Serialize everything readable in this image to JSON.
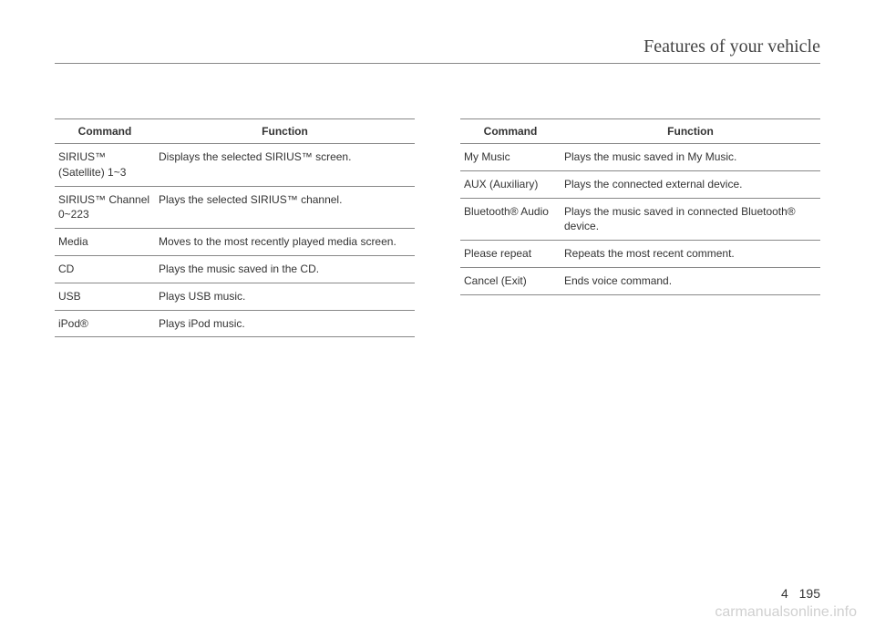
{
  "header": {
    "section_title": "Features of your vehicle"
  },
  "left_table": {
    "headers": {
      "command": "Command",
      "function": "Function"
    },
    "rows": [
      {
        "command": "SIRIUS™ (Satellite) 1~3",
        "function": "Displays the selected SIRIUS™ screen."
      },
      {
        "command": "SIRIUS™ Channel 0~223",
        "function": "Plays the selected SIRIUS™ channel."
      },
      {
        "command": "Media",
        "function": "Moves to the most recently played media screen."
      },
      {
        "command": "CD",
        "function": "Plays the music saved in the CD."
      },
      {
        "command": "USB",
        "function": "Plays USB music."
      },
      {
        "command": "iPod®",
        "function": "Plays iPod music."
      }
    ]
  },
  "right_table": {
    "headers": {
      "command": "Command",
      "function": "Function"
    },
    "rows": [
      {
        "command": "My Music",
        "function": "Plays the music saved in My Music."
      },
      {
        "command": "AUX (Auxiliary)",
        "function": "Plays the connected external device."
      },
      {
        "command": "Bluetooth® Audio",
        "function": "Plays the music saved in connected Bluetooth® device."
      },
      {
        "command": "Please repeat",
        "function": "Repeats the most recent comment."
      },
      {
        "command": "Cancel (Exit)",
        "function": "Ends voice command."
      }
    ]
  },
  "footer": {
    "chapter": "4",
    "page": "195"
  },
  "watermark": "carmanualsonline.info"
}
